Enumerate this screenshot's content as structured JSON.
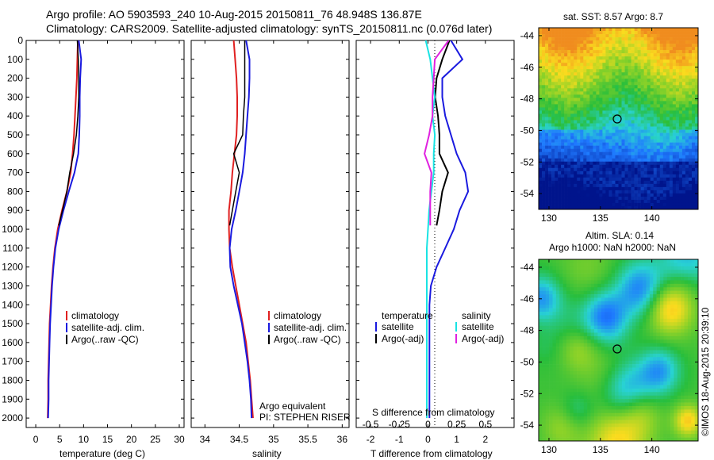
{
  "header": {
    "line1": "Argo profile: AO 5903593_240 10-Aug-2015 20150811_76 48.948S 136.87E",
    "line2": "Climatology: CARS2009. Satellite-adjusted climatology: synTS_20150811.nc (0.076d later)"
  },
  "colors": {
    "climatology": "#e02020",
    "satellite": "#1a1adf",
    "argo": "#000000",
    "sat_salinity": "#19e3e3",
    "argo_salinity": "#e020e0"
  },
  "panels": {
    "depth_ticks": [
      "0",
      "100",
      "200",
      "300",
      "400",
      "500",
      "600",
      "700",
      "800",
      "900",
      "1000",
      "1100",
      "1200",
      "1300",
      "1400",
      "1500",
      "1600",
      "1700",
      "1800",
      "1900",
      "2000"
    ],
    "temperature": {
      "xticks": [
        "0",
        "5",
        "10",
        "15",
        "20",
        "25",
        "30"
      ],
      "xlabel": "temperature (deg C)",
      "legend": [
        "climatology",
        "satellite-adj. clim.",
        "Argo(..raw -QC)"
      ]
    },
    "salinity": {
      "xticks": [
        "34",
        "34.5",
        "35",
        "35.5",
        "36"
      ],
      "xlabel": "salinity",
      "legend": [
        "climatology",
        "satellite-adj. clim.",
        "Argo(..raw -QC)"
      ],
      "note1": "Argo equivalent",
      "note2": "PI: STEPHEN RISER"
    },
    "difference": {
      "xticks_T": [
        "-2",
        "-1",
        "0",
        "1",
        "2"
      ],
      "xticks_S": [
        "-0.5",
        "-0.25",
        "0",
        "0.25",
        "0.5"
      ],
      "xlabel": "T difference from climatology",
      "s_label": "S difference from climatology",
      "legend_temp_title": "temperature",
      "legend_sal_title": "salinity",
      "legend_temp": [
        "satellite",
        "Argo(-adj)"
      ],
      "legend_sal": [
        "satellite",
        "Argo(-adj)"
      ]
    }
  },
  "maps": {
    "sst": {
      "title": "sat. SST: 8.57 Argo: 8.7",
      "yticks": [
        "-44",
        "-46",
        "-48",
        "-50",
        "-52",
        "-54"
      ],
      "xticks": [
        "130",
        "135",
        "140"
      ]
    },
    "sla": {
      "title1": "Altim. SLA: 0.14",
      "title2": "Argo h1000: NaN h2000: NaN",
      "yticks": [
        "-44",
        "-46",
        "-48",
        "-50",
        "-52",
        "-54"
      ],
      "xticks": [
        "130",
        "135",
        "140"
      ]
    },
    "credit": "©IMOS 18-Aug-2015 20:39:10"
  },
  "chart_data": [
    {
      "type": "line",
      "title": "",
      "xlabel": "temperature (deg C)",
      "ylabel": "",
      "xlim": [
        -2,
        31
      ],
      "ylim": [
        2050,
        0
      ],
      "series": [
        {
          "name": "climatology",
          "x": [
            8.8,
            8.7,
            8.6,
            8.4,
            8.2,
            8.0,
            7.7,
            7.3,
            6.5,
            5.5,
            4.6,
            4.0,
            3.6,
            3.3,
            3.1,
            2.9,
            2.8,
            2.7,
            2.6,
            2.6,
            2.5
          ],
          "depth": [
            0,
            100,
            200,
            300,
            400,
            500,
            600,
            700,
            800,
            900,
            1000,
            1100,
            1200,
            1300,
            1400,
            1500,
            1600,
            1700,
            1800,
            1900,
            2000
          ]
        },
        {
          "name": "satellite-adj. clim.",
          "x": [
            9.0,
            9.5,
            9.3,
            9.2,
            9.2,
            9.1,
            8.9,
            8.1,
            6.9,
            5.8,
            4.8,
            4.1,
            3.7,
            3.4,
            3.2,
            3.0,
            2.9,
            2.8,
            2.7,
            2.7,
            2.6
          ],
          "depth": [
            0,
            100,
            200,
            300,
            400,
            500,
            600,
            700,
            800,
            900,
            1000,
            1100,
            1200,
            1300,
            1400,
            1500,
            1600,
            1700,
            1800,
            1900,
            2000
          ]
        },
        {
          "name": "Argo(..raw -QC)",
          "x": [
            8.7,
            8.9,
            9.0,
            9.0,
            8.8,
            8.5,
            7.9,
            7.1,
            6.5,
            5.6,
            4.8
          ],
          "depth": [
            0,
            100,
            200,
            300,
            400,
            500,
            600,
            700,
            800,
            900,
            980
          ]
        }
      ]
    },
    {
      "type": "line",
      "title": "",
      "xlabel": "salinity",
      "ylabel": "",
      "xlim": [
        33.8,
        36.1
      ],
      "ylim": [
        2050,
        0
      ],
      "series": [
        {
          "name": "climatology",
          "x": [
            34.42,
            34.44,
            34.46,
            34.47,
            34.47,
            34.46,
            34.43,
            34.4,
            34.38,
            34.35,
            34.35,
            34.36,
            34.4,
            34.45,
            34.5,
            34.55,
            34.6,
            34.63,
            34.66,
            34.68,
            34.7
          ],
          "depth": [
            0,
            100,
            200,
            300,
            400,
            500,
            600,
            700,
            800,
            900,
            1000,
            1100,
            1200,
            1300,
            1400,
            1500,
            1600,
            1700,
            1800,
            1900,
            2000
          ]
        },
        {
          "name": "satellite-adj. clim.",
          "x": [
            34.6,
            34.65,
            34.65,
            34.64,
            34.62,
            34.6,
            34.58,
            34.55,
            34.5,
            34.45,
            34.39,
            34.36,
            34.37,
            34.42,
            34.48,
            34.54,
            34.58,
            34.62,
            34.65,
            34.67,
            34.68
          ],
          "depth": [
            0,
            100,
            200,
            300,
            400,
            500,
            600,
            700,
            800,
            900,
            1000,
            1100,
            1200,
            1300,
            1400,
            1500,
            1600,
            1700,
            1800,
            1900,
            2000
          ]
        },
        {
          "name": "Argo(..raw -QC)",
          "x": [
            34.58,
            34.58,
            34.58,
            34.58,
            34.56,
            34.55,
            34.42,
            34.5,
            34.45,
            34.4,
            34.36
          ],
          "depth": [
            0,
            100,
            200,
            300,
            400,
            500,
            600,
            700,
            800,
            900,
            980
          ]
        }
      ]
    },
    {
      "type": "line",
      "title": "",
      "xlabel": "T difference from climatology",
      "ylabel": "",
      "xlim": [
        -2.5,
        3.0
      ],
      "ylim": [
        2050,
        0
      ],
      "series": [
        {
          "name": "satellite",
          "x": [
            0.8,
            1.2,
            0.5,
            0.5,
            0.6,
            0.8,
            1.0,
            1.3,
            1.4,
            1.1,
            0.9,
            0.6,
            0.3,
            0.1,
            0.05,
            0.05,
            0.05,
            0.05,
            0.05,
            0.05,
            0.05
          ],
          "depth": [
            0,
            100,
            200,
            300,
            400,
            500,
            600,
            700,
            800,
            900,
            1000,
            1100,
            1200,
            1300,
            1400,
            1500,
            1600,
            1700,
            1800,
            1900,
            2000
          ]
        },
        {
          "name": "Argo(-adj)",
          "x": [
            0.75,
            0.5,
            0.3,
            0.25,
            0.35,
            0.4,
            0.4,
            0.7,
            0.5,
            0.4,
            0.3
          ],
          "depth": [
            0,
            100,
            200,
            300,
            400,
            500,
            600,
            700,
            800,
            900,
            980
          ]
        },
        {
          "name": "satellite S",
          "x": [
            -0.02,
            0.02,
            0.04,
            0.06,
            0.04,
            0.06,
            0.05,
            0.05,
            0.03,
            0.01,
            0.0,
            -0.01,
            -0.01,
            -0.01,
            -0.01,
            -0.01,
            -0.01,
            -0.01,
            -0.01,
            -0.01,
            -0.01
          ],
          "depth": [
            0,
            100,
            200,
            300,
            400,
            500,
            600,
            700,
            800,
            900,
            1000,
            1100,
            1200,
            1300,
            1400,
            1500,
            1600,
            1700,
            1800,
            1900,
            2000
          ]
        },
        {
          "name": "Argo(-adj) S",
          "x": [
            0.18,
            0.06,
            0.05,
            0.04,
            0.04,
            0.01,
            -0.03,
            0.03,
            0.02,
            0.02,
            0.02
          ],
          "depth": [
            0,
            100,
            200,
            300,
            400,
            500,
            600,
            700,
            800,
            900,
            980
          ]
        }
      ]
    },
    {
      "type": "heatmap",
      "title": "sat. SST: 8.57 Argo: 8.7",
      "xlabel": "",
      "ylabel": "",
      "xlim": [
        129,
        144.5
      ],
      "ylim": [
        -55,
        -43.5
      ],
      "argo_position": {
        "lon": 136.87,
        "lat": -48.948
      }
    },
    {
      "type": "heatmap",
      "title": "Altim. SLA: 0.14",
      "xlabel": "",
      "ylabel": "",
      "xlim": [
        129,
        144.5
      ],
      "ylim": [
        -55,
        -43.5
      ],
      "argo_position": {
        "lon": 136.87,
        "lat": -48.948
      }
    }
  ]
}
